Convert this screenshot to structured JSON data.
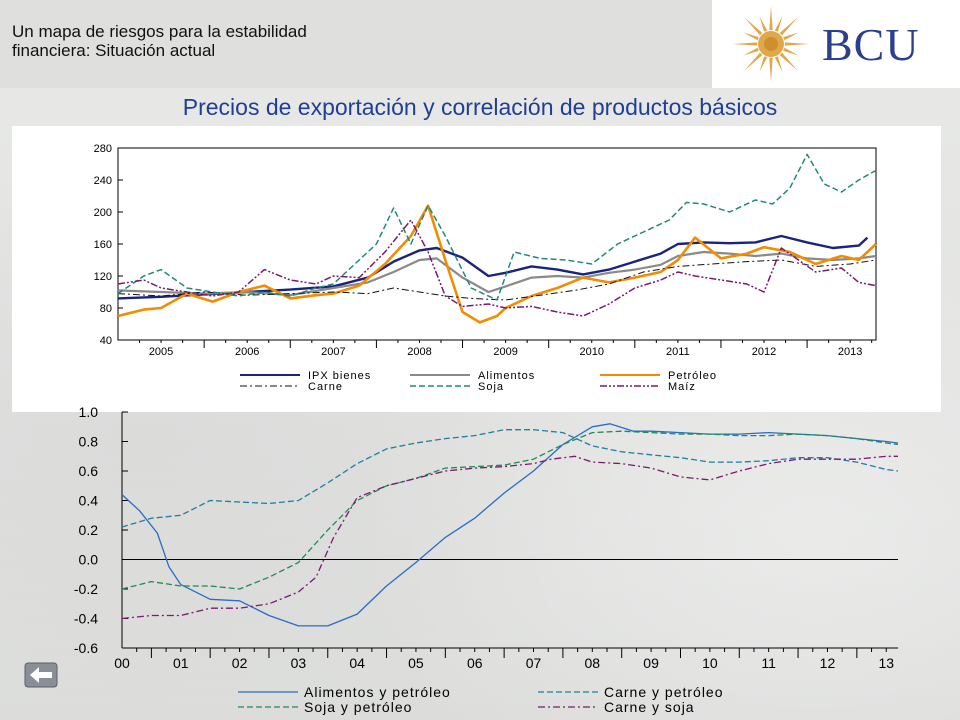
{
  "header": {
    "subtitle_line1": "Un mapa de riesgos para la estabilidad",
    "subtitle_line2": "financiera: Situación actual",
    "logo_text": "BCU"
  },
  "slide": {
    "title": "Precios de exportación y correlación de productos básicos"
  },
  "nav": {
    "back_icon": "back-arrow-icon"
  },
  "chart_data": [
    {
      "type": "line",
      "title": "",
      "xlabel": "",
      "ylabel": "",
      "ylim": [
        40,
        280
      ],
      "xlim": [
        2004.5,
        2013.3
      ],
      "yticks": [
        40,
        80,
        120,
        160,
        200,
        240,
        280
      ],
      "xticks": [
        "2005",
        "2006",
        "2007",
        "2008",
        "2009",
        "2010",
        "2011",
        "2012",
        "2013"
      ],
      "grid": false,
      "legend_position": "bottom",
      "series": [
        {
          "name": "IPX bienes",
          "color": "#1a237e",
          "dash": "solid",
          "width": 2.4,
          "x": [
            2004.5,
            2005,
            2005.5,
            2006,
            2006.5,
            2007,
            2007.4,
            2007.7,
            2008,
            2008.2,
            2008.5,
            2008.8,
            2009,
            2009.3,
            2009.6,
            2009.9,
            2010.2,
            2010.5,
            2010.8,
            2011,
            2011.3,
            2011.6,
            2011.9,
            2012.2,
            2012.5,
            2012.8,
            2013.1,
            2013.2
          ],
          "y": [
            92,
            94,
            97,
            100,
            103,
            107,
            118,
            138,
            152,
            155,
            143,
            120,
            124,
            132,
            128,
            122,
            128,
            138,
            148,
            160,
            162,
            161,
            162,
            170,
            162,
            155,
            158,
            168
          ]
        },
        {
          "name": "Alimentos",
          "color": "#8a8a8a",
          "dash": "solid",
          "width": 2.2,
          "x": [
            2004.5,
            2005,
            2005.5,
            2006,
            2006.5,
            2007,
            2007.4,
            2007.7,
            2008,
            2008.2,
            2008.5,
            2008.8,
            2009,
            2009.3,
            2009.6,
            2009.9,
            2010.2,
            2010.5,
            2010.8,
            2011,
            2011.3,
            2011.6,
            2011.9,
            2012.2,
            2012.5,
            2012.8,
            2013.1,
            2013.3
          ],
          "y": [
            102,
            100,
            98,
            100,
            96,
            105,
            112,
            125,
            140,
            142,
            118,
            100,
            107,
            118,
            120,
            118,
            124,
            128,
            134,
            145,
            150,
            148,
            145,
            148,
            142,
            140,
            142,
            145
          ]
        },
        {
          "name": "Petróleo",
          "color": "#f28c00",
          "dash": "solid",
          "width": 2.6,
          "x": [
            2004.5,
            2004.8,
            2005,
            2005.3,
            2005.6,
            2005.9,
            2006.2,
            2006.5,
            2006.8,
            2007,
            2007.3,
            2007.6,
            2007.9,
            2008.1,
            2008.3,
            2008.5,
            2008.7,
            2008.9,
            2009,
            2009.3,
            2009.6,
            2009.9,
            2010.2,
            2010.5,
            2010.8,
            2011,
            2011.2,
            2011.5,
            2011.8,
            2012,
            2012.3,
            2012.6,
            2012.9,
            2013.1,
            2013.3
          ],
          "y": [
            70,
            78,
            80,
            98,
            88,
            100,
            108,
            92,
            96,
            98,
            108,
            135,
            170,
            208,
            140,
            75,
            62,
            70,
            80,
            95,
            105,
            118,
            112,
            118,
            125,
            140,
            168,
            142,
            148,
            156,
            150,
            135,
            145,
            140,
            160
          ]
        },
        {
          "name": "Carne",
          "color": "#111111",
          "dash": "dashdot",
          "width": 1,
          "x": [
            2004.5,
            2005,
            2005.5,
            2006,
            2006.5,
            2007,
            2007.4,
            2007.7,
            2008,
            2008.3,
            2008.6,
            2009,
            2009.4,
            2009.8,
            2010.2,
            2010.6,
            2011,
            2011.4,
            2011.8,
            2012.2,
            2012.6,
            2013,
            2013.3
          ],
          "y": [
            98,
            95,
            100,
            96,
            98,
            100,
            98,
            105,
            100,
            95,
            92,
            90,
            96,
            102,
            110,
            125,
            132,
            135,
            138,
            140,
            132,
            135,
            140
          ]
        },
        {
          "name": "Soja",
          "color": "#1f8a7a",
          "dash": "dashed",
          "width": 1.5,
          "x": [
            2004.5,
            2004.8,
            2005,
            2005.3,
            2005.6,
            2005.9,
            2006.2,
            2006.5,
            2006.8,
            2007,
            2007.3,
            2007.5,
            2007.7,
            2007.9,
            2008.1,
            2008.3,
            2008.6,
            2008.9,
            2009.1,
            2009.4,
            2009.7,
            2010,
            2010.3,
            2010.6,
            2010.9,
            2011.1,
            2011.3,
            2011.6,
            2011.9,
            2012.1,
            2012.3,
            2012.5,
            2012.7,
            2012.9,
            2013.1,
            2013.3
          ],
          "y": [
            98,
            120,
            128,
            105,
            100,
            95,
            100,
            95,
            105,
            110,
            140,
            160,
            205,
            160,
            208,
            170,
            105,
            90,
            150,
            142,
            140,
            135,
            160,
            175,
            190,
            212,
            210,
            200,
            215,
            210,
            230,
            272,
            235,
            225,
            240,
            252
          ]
        },
        {
          "name": "Maíz",
          "color": "#7a1a6e",
          "dash": "dashdotdot",
          "width": 1.5,
          "x": [
            2004.5,
            2004.8,
            2005,
            2005.3,
            2005.6,
            2005.9,
            2006.2,
            2006.5,
            2006.8,
            2007,
            2007.3,
            2007.6,
            2007.9,
            2008.1,
            2008.3,
            2008.5,
            2008.8,
            2009,
            2009.3,
            2009.6,
            2009.9,
            2010.2,
            2010.5,
            2010.8,
            2011,
            2011.2,
            2011.5,
            2011.8,
            2012,
            2012.2,
            2012.4,
            2012.6,
            2012.9,
            2013.1,
            2013.3
          ],
          "y": [
            110,
            115,
            105,
            100,
            95,
            100,
            128,
            115,
            110,
            120,
            118,
            150,
            190,
            150,
            95,
            82,
            85,
            80,
            82,
            75,
            70,
            85,
            105,
            115,
            125,
            120,
            115,
            110,
            100,
            155,
            140,
            125,
            130,
            112,
            108
          ]
        }
      ]
    },
    {
      "type": "line",
      "title": "",
      "xlabel": "",
      "ylabel": "",
      "ylim": [
        -0.6,
        1.0
      ],
      "xlim": [
        2000,
        2013.2
      ],
      "yticks": [
        "-0.6",
        "-0.4",
        "-0.2",
        "0.0",
        "0.2",
        "0.4",
        "0.6",
        "0.8",
        "1.0"
      ],
      "xticks": [
        "00",
        "01",
        "02",
        "03",
        "04",
        "05",
        "06",
        "07",
        "08",
        "09",
        "10",
        "11",
        "12",
        "13"
      ],
      "zero_line": true,
      "grid": false,
      "legend_position": "bottom",
      "series": [
        {
          "name": "Alimentos y petróleo",
          "color": "#2b6cc4",
          "dash": "solid",
          "width": 1.3,
          "x": [
            2000,
            2000.3,
            2000.6,
            2000.8,
            2001,
            2001.5,
            2002,
            2002.5,
            2003,
            2003.5,
            2004,
            2004.5,
            2005,
            2005.5,
            2006,
            2006.5,
            2007,
            2007.5,
            2008,
            2008.3,
            2008.7,
            2009,
            2009.5,
            2010,
            2010.5,
            2011,
            2011.5,
            2012,
            2012.5,
            2013,
            2013.2
          ],
          "y": [
            0.44,
            0.33,
            0.18,
            -0.05,
            -0.17,
            -0.27,
            -0.28,
            -0.38,
            -0.45,
            -0.45,
            -0.37,
            -0.18,
            -0.02,
            0.15,
            0.28,
            0.45,
            0.6,
            0.78,
            0.9,
            0.92,
            0.87,
            0.87,
            0.86,
            0.85,
            0.85,
            0.86,
            0.85,
            0.84,
            0.82,
            0.8,
            0.79
          ]
        },
        {
          "name": "Carne y petróleo",
          "color": "#1f7fa0",
          "dash": "dashed",
          "width": 1.3,
          "x": [
            2000,
            2000.5,
            2001,
            2001.5,
            2002,
            2002.5,
            2003,
            2003.5,
            2004,
            2004.5,
            2005,
            2005.5,
            2006,
            2006.5,
            2007,
            2007.5,
            2008,
            2008.5,
            2009,
            2009.5,
            2010,
            2010.5,
            2011,
            2011.5,
            2012,
            2012.5,
            2013,
            2013.2
          ],
          "y": [
            0.22,
            0.28,
            0.3,
            0.4,
            0.39,
            0.38,
            0.4,
            0.52,
            0.65,
            0.75,
            0.79,
            0.82,
            0.84,
            0.88,
            0.88,
            0.86,
            0.77,
            0.73,
            0.71,
            0.69,
            0.66,
            0.66,
            0.67,
            0.69,
            0.69,
            0.66,
            0.61,
            0.6
          ]
        },
        {
          "name": "Soja y petróleo",
          "color": "#1f8a5a",
          "dash": "dashed",
          "width": 1.3,
          "x": [
            2000,
            2000.5,
            2001,
            2001.5,
            2002,
            2002.5,
            2003,
            2003.5,
            2004,
            2004.5,
            2005,
            2005.5,
            2006,
            2006.5,
            2007,
            2007.5,
            2008,
            2008.5,
            2009,
            2009.5,
            2010,
            2010.5,
            2011,
            2011.5,
            2012,
            2012.5,
            2013,
            2013.2
          ],
          "y": [
            -0.2,
            -0.15,
            -0.18,
            -0.18,
            -0.2,
            -0.12,
            -0.02,
            0.2,
            0.4,
            0.5,
            0.55,
            0.62,
            0.63,
            0.64,
            0.68,
            0.78,
            0.86,
            0.87,
            0.86,
            0.85,
            0.85,
            0.84,
            0.84,
            0.85,
            0.84,
            0.82,
            0.79,
            0.78
          ]
        },
        {
          "name": "Carne y soja",
          "color": "#7a1a6e",
          "dash": "dashdot",
          "width": 1.3,
          "x": [
            2000,
            2000.5,
            2001,
            2001.5,
            2002,
            2002.5,
            2003,
            2003.3,
            2003.6,
            2004,
            2004.5,
            2005,
            2005.5,
            2006,
            2006.5,
            2007,
            2007.3,
            2007.7,
            2008,
            2008.5,
            2009,
            2009.5,
            2010,
            2010.5,
            2011,
            2011.5,
            2012,
            2012.5,
            2013,
            2013.2
          ],
          "y": [
            -0.4,
            -0.38,
            -0.38,
            -0.33,
            -0.33,
            -0.3,
            -0.22,
            -0.12,
            0.15,
            0.42,
            0.5,
            0.55,
            0.6,
            0.62,
            0.63,
            0.65,
            0.68,
            0.7,
            0.66,
            0.65,
            0.62,
            0.56,
            0.54,
            0.6,
            0.65,
            0.68,
            0.68,
            0.68,
            0.7,
            0.7
          ]
        }
      ]
    }
  ],
  "colors": {
    "title_blue": "#1f3f96",
    "logo_blue": "#2c3f8c",
    "logo_sun": "#e0a84a"
  }
}
